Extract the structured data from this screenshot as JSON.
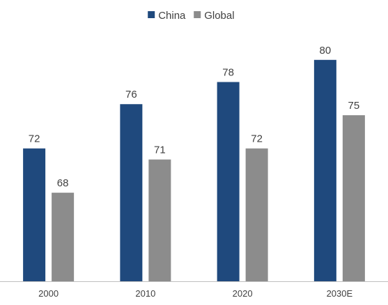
{
  "chart_data": {
    "type": "bar",
    "title": "",
    "xlabel": "",
    "ylabel": "",
    "categories": [
      "2000",
      "2010",
      "2020",
      "2030E"
    ],
    "series": [
      {
        "name": "China",
        "values": [
          72,
          76,
          78,
          80
        ],
        "color": "#1F497D"
      },
      {
        "name": "Global",
        "values": [
          68,
          71,
          72,
          75
        ],
        "color": "#8C8C8C"
      }
    ],
    "ylim": [
      60,
      81.5
    ],
    "grid": false,
    "legend": "top-center",
    "axis_color": "#BFBFBF",
    "data_labels": true
  }
}
